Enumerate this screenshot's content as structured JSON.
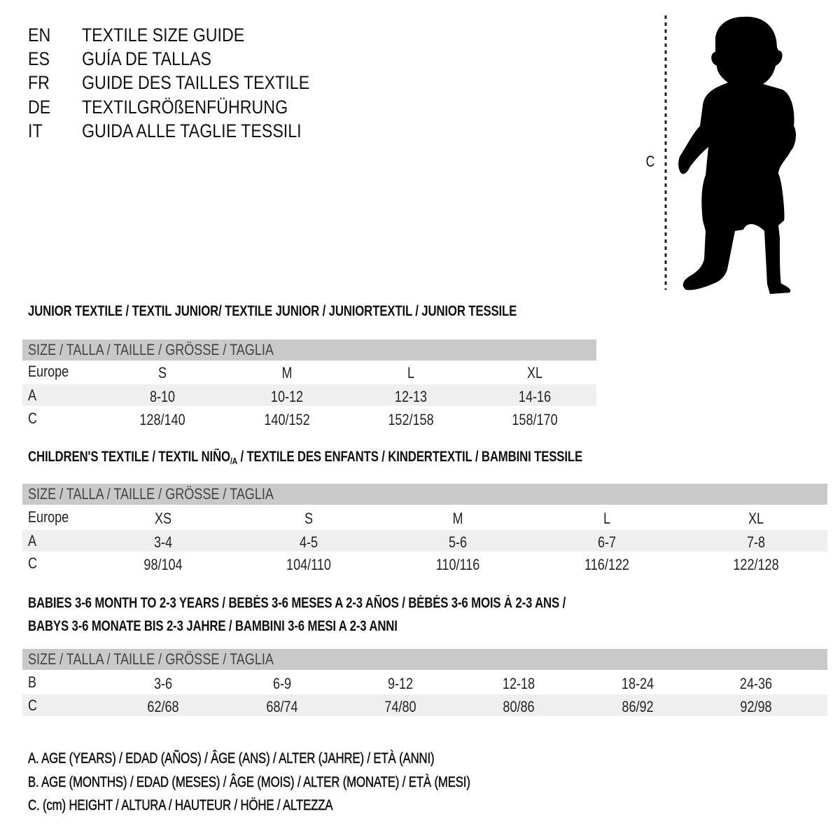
{
  "title_lines": [
    {
      "code": "EN",
      "text": "TEXTILE SIZE GUIDE"
    },
    {
      "code": "ES",
      "text": "GUÍA DE TALLAS"
    },
    {
      "code": "FR",
      "text": "GUIDE DES TAILLES TEXTILE"
    },
    {
      "code": "DE",
      "text": "TEXTILGRÖßENFÜHRUNG"
    },
    {
      "code": "IT",
      "text": "GUIDA ALLE TAGLIE TESSILI"
    }
  ],
  "figure": {
    "measure_label": "C",
    "icon": "child-silhouette"
  },
  "junior": {
    "heading": "JUNIOR TEXTILE / TEXTIL JUNIOR/ TEXTILE JUNIOR / JUNIORTEXTIL / JUNIOR TESSILE",
    "size_header": "SIZE / TALLA / TAILLE / GRÖSSE / TAGLIA",
    "rows": [
      {
        "label": "Europe",
        "values": [
          "S",
          "M",
          "L",
          "XL"
        ]
      },
      {
        "label": "A",
        "values": [
          "8-10",
          "10-12",
          "12-13",
          "14-16"
        ]
      },
      {
        "label": "C",
        "values": [
          "128/140",
          "140/152",
          "152/158",
          "158/170"
        ]
      }
    ]
  },
  "children": {
    "heading_pre": "CHILDREN'S TEXTILE / TEXTIL NIÑO",
    "heading_sub": "/A",
    "heading_post": " / TEXTILE DES ENFANTS / KINDERTEXTIL / BAMBINI TESSILE",
    "size_header": "SIZE / TALLA / TAILLE / GRÖSSE / TAGLIA",
    "rows": [
      {
        "label": "Europe",
        "values": [
          "XS",
          "S",
          "M",
          "L",
          "XL"
        ]
      },
      {
        "label": "A",
        "values": [
          "3-4",
          "4-5",
          "5-6",
          "6-7",
          "7-8"
        ]
      },
      {
        "label": "C",
        "values": [
          "98/104",
          "104/110",
          "110/116",
          "116/122",
          "122/128"
        ]
      }
    ]
  },
  "babies": {
    "heading_line1": "BABIES 3-6 MONTH TO 2-3 YEARS / BEBÉS 3-6 MESES A 2-3 AÑOS / BÉBÉS 3-6 MOIS À 2-3 ANS /",
    "heading_line2": "BABYS 3-6 MONATE BIS 2-3 JAHRE / BAMBINI 3-6 MESI A 2-3 ANNI",
    "size_header": "SIZE / TALLA / TAILLE / GRÖSSE / TAGLIA",
    "rows": [
      {
        "label": "B",
        "values": [
          "3-6",
          "6-9",
          "9-12",
          "12-18",
          "18-24",
          "24-36"
        ]
      },
      {
        "label": "C",
        "values": [
          "62/68",
          "68/74",
          "74/80",
          "80/86",
          "86/92",
          "92/98"
        ]
      }
    ]
  },
  "legend": [
    "A. AGE (YEARS) / EDAD (AÑOS) / ÂGE (ANS) / ALTER (JAHRE) / ETÀ (ANNI)",
    "B. AGE (MONTHS) / EDAD (MESES) / ÂGE (MOIS) / ALTER (MONATE) / ETÀ (MESI)",
    "C. (cm) HEIGHT / ALTURA / HAUTEUR / HÖHE / ALTEZZA"
  ],
  "colors": {
    "header_bar": "#c9c9c9",
    "row_shade": "#efefef"
  }
}
